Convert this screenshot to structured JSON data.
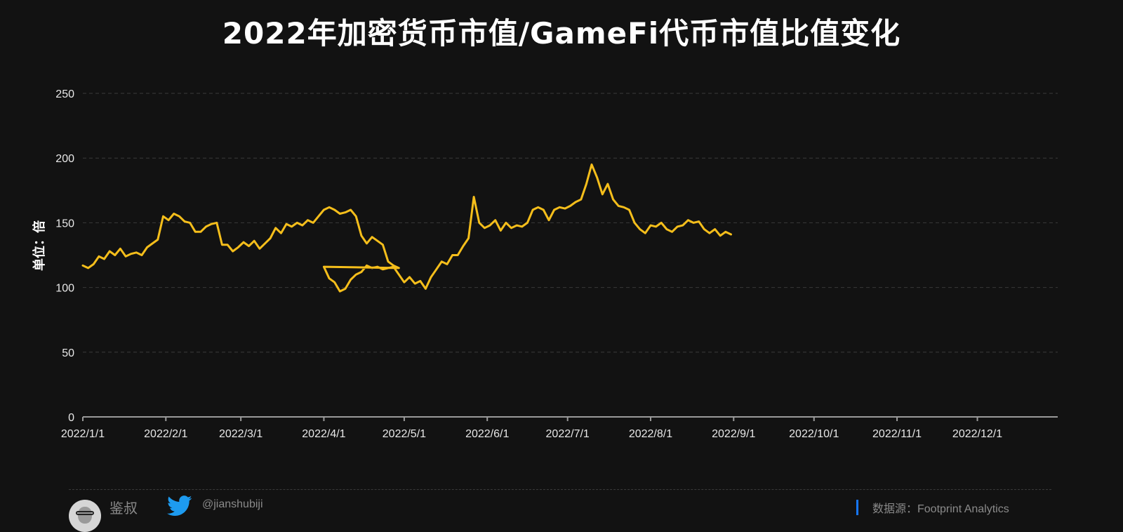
{
  "title": "2022年加密货币市值/GameFi代币市值比值变化",
  "footer": {
    "author": "鉴叔",
    "handle": "@jianshubiji",
    "source": "数据源：Footprint Analytics"
  },
  "colors": {
    "background": "#121212",
    "line": "#F5BE1B",
    "grid": "#3a3a3a",
    "text": "#ffffff",
    "source_accent": "#1677ff"
  },
  "chart_data": {
    "type": "line",
    "title": "2022年加密货币市值/GameFi代币市值比值变化",
    "xlabel": "",
    "ylabel": "单位：倍",
    "ylim": [
      0,
      250
    ],
    "yticks": [
      0,
      50,
      100,
      150,
      200,
      250
    ],
    "xticks": [
      "2022/1/1",
      "2022/2/1",
      "2022/3/1",
      "2022/4/1",
      "2022/5/1",
      "2022/6/1",
      "2022/7/1",
      "2022/8/1",
      "2022/9/1",
      "2022/10/1",
      "2022/11/1",
      "2022/12/1"
    ],
    "grid": "horizontal-dashed",
    "series": [
      {
        "color": "#F5BE1B",
        "points": [
          [
            "2022-01-01",
            117
          ],
          [
            "2022-01-03",
            115
          ],
          [
            "2022-01-05",
            118
          ],
          [
            "2022-01-07",
            124
          ],
          [
            "2022-01-09",
            122
          ],
          [
            "2022-01-11",
            128
          ],
          [
            "2022-01-13",
            125
          ],
          [
            "2022-01-15",
            130
          ],
          [
            "2022-01-17",
            124
          ],
          [
            "2022-01-19",
            126
          ],
          [
            "2022-01-21",
            127
          ],
          [
            "2022-01-23",
            125
          ],
          [
            "2022-01-25",
            131
          ],
          [
            "2022-01-27",
            134
          ],
          [
            "2022-01-29",
            137
          ],
          [
            "2022-01-31",
            155
          ],
          [
            "2022-02-02",
            152
          ],
          [
            "2022-02-04",
            157
          ],
          [
            "2022-02-06",
            155
          ],
          [
            "2022-02-08",
            151
          ],
          [
            "2022-02-10",
            150
          ],
          [
            "2022-02-12",
            143
          ],
          [
            "2022-02-14",
            143
          ],
          [
            "2022-02-16",
            147
          ],
          [
            "2022-02-18",
            149
          ],
          [
            "2022-02-20",
            150
          ],
          [
            "2022-02-22",
            133
          ],
          [
            "2022-02-24",
            133
          ],
          [
            "2022-02-26",
            128
          ],
          [
            "2022-02-28",
            131
          ],
          [
            "2022-03-02",
            135
          ],
          [
            "2022-03-04",
            132
          ],
          [
            "2022-03-06",
            136
          ],
          [
            "2022-03-08",
            130
          ],
          [
            "2022-03-10",
            134
          ],
          [
            "2022-03-12",
            138
          ],
          [
            "2022-03-14",
            146
          ],
          [
            "2022-03-16",
            142
          ],
          [
            "2022-03-18",
            149
          ],
          [
            "2022-03-20",
            147
          ],
          [
            "2022-03-22",
            150
          ],
          [
            "2022-03-24",
            148
          ],
          [
            "2022-03-26",
            152
          ],
          [
            "2022-03-28",
            150
          ],
          [
            "2022-03-30",
            155
          ],
          [
            "2022-04-01",
            160
          ],
          [
            "2022-04-03",
            162
          ],
          [
            "2022-04-05",
            160
          ],
          [
            "2022-04-07",
            157
          ],
          [
            "2022-04-09",
            158
          ],
          [
            "2022-04-11",
            160
          ],
          [
            "2022-04-13",
            155
          ],
          [
            "2022-04-15",
            140
          ],
          [
            "2022-04-17",
            134
          ],
          [
            "2022-04-19",
            139
          ],
          [
            "2022-04-21",
            136
          ],
          [
            "2022-04-23",
            133
          ],
          [
            "2022-04-25",
            120
          ],
          [
            "2022-04-27",
            117
          ],
          [
            "2022-04-29",
            115
          ],
          [
            "2022-04-01",
            116
          ],
          [
            "2022-04-03",
            107
          ],
          [
            "2022-04-05",
            104
          ],
          [
            "2022-04-07",
            97
          ],
          [
            "2022-04-09",
            99
          ],
          [
            "2022-04-11",
            106
          ],
          [
            "2022-04-13",
            110
          ],
          [
            "2022-04-15",
            112
          ],
          [
            "2022-04-17",
            117
          ],
          [
            "2022-04-19",
            115
          ],
          [
            "2022-04-21",
            116
          ],
          [
            "2022-04-23",
            114
          ],
          [
            "2022-04-25",
            115
          ],
          [
            "2022-04-27",
            116
          ],
          [
            "2022-04-29",
            110
          ],
          [
            "2022-05-01",
            104
          ],
          [
            "2022-05-03",
            108
          ],
          [
            "2022-05-05",
            103
          ],
          [
            "2022-05-07",
            105
          ],
          [
            "2022-05-09",
            99
          ],
          [
            "2022-05-11",
            108
          ],
          [
            "2022-05-13",
            114
          ],
          [
            "2022-05-15",
            120
          ],
          [
            "2022-05-17",
            118
          ],
          [
            "2022-05-19",
            125
          ],
          [
            "2022-05-21",
            125
          ],
          [
            "2022-05-23",
            132
          ],
          [
            "2022-05-25",
            138
          ],
          [
            "2022-05-27",
            170
          ],
          [
            "2022-05-29",
            150
          ],
          [
            "2022-05-31",
            146
          ],
          [
            "2022-06-02",
            148
          ],
          [
            "2022-06-04",
            152
          ],
          [
            "2022-06-06",
            144
          ],
          [
            "2022-06-08",
            150
          ],
          [
            "2022-06-10",
            146
          ],
          [
            "2022-06-12",
            148
          ],
          [
            "2022-06-14",
            147
          ],
          [
            "2022-06-16",
            150
          ],
          [
            "2022-06-18",
            160
          ],
          [
            "2022-06-20",
            162
          ],
          [
            "2022-06-22",
            160
          ],
          [
            "2022-06-24",
            152
          ],
          [
            "2022-06-26",
            160
          ],
          [
            "2022-06-28",
            162
          ],
          [
            "2022-06-30",
            161
          ],
          [
            "2022-07-02",
            163
          ],
          [
            "2022-07-04",
            166
          ],
          [
            "2022-07-06",
            168
          ],
          [
            "2022-07-08",
            180
          ],
          [
            "2022-07-10",
            195
          ],
          [
            "2022-07-12",
            185
          ],
          [
            "2022-07-14",
            172
          ],
          [
            "2022-07-16",
            180
          ],
          [
            "2022-07-18",
            168
          ],
          [
            "2022-07-20",
            163
          ],
          [
            "2022-07-22",
            162
          ],
          [
            "2022-07-24",
            160
          ],
          [
            "2022-07-26",
            150
          ],
          [
            "2022-07-28",
            145
          ],
          [
            "2022-07-30",
            142
          ],
          [
            "2022-08-01",
            148
          ],
          [
            "2022-08-03",
            147
          ],
          [
            "2022-08-05",
            150
          ],
          [
            "2022-08-07",
            145
          ],
          [
            "2022-08-09",
            143
          ],
          [
            "2022-08-11",
            147
          ],
          [
            "2022-08-13",
            148
          ],
          [
            "2022-08-15",
            152
          ],
          [
            "2022-08-17",
            150
          ],
          [
            "2022-08-19",
            151
          ],
          [
            "2022-08-21",
            145
          ],
          [
            "2022-08-23",
            142
          ],
          [
            "2022-08-25",
            145
          ],
          [
            "2022-08-27",
            140
          ],
          [
            "2022-08-29",
            143
          ],
          [
            "2022-08-31",
            141
          ]
        ]
      }
    ]
  }
}
